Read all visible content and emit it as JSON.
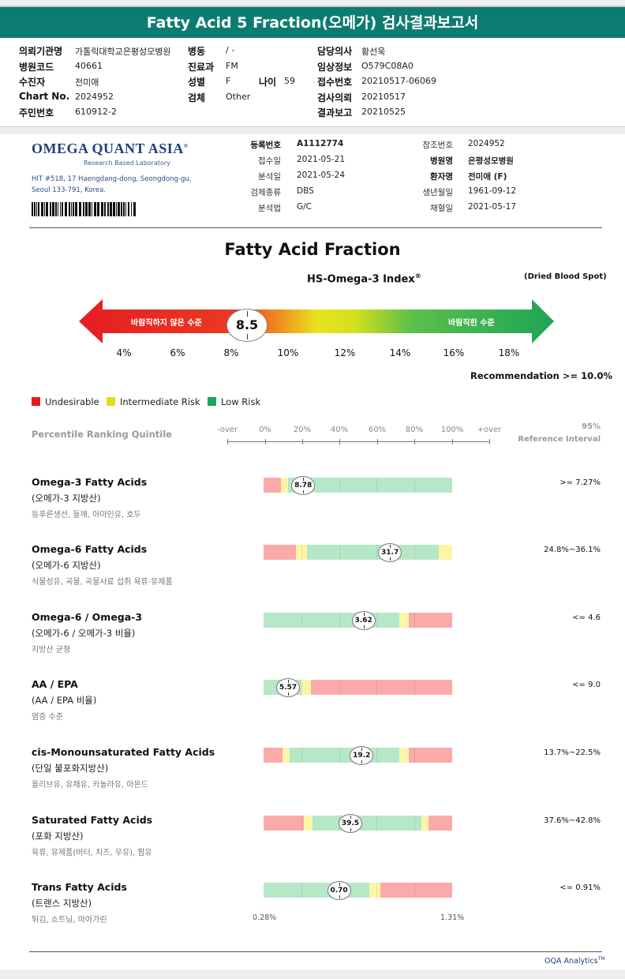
{
  "report": {
    "title": "Fatty Acid 5 Fraction(오메가) 검사결과보고서",
    "fields_left": [
      {
        "label": "의뢰기관명",
        "value": "가톨릭대학교은평성모병원"
      },
      {
        "label": "병원코드",
        "value": "40661"
      },
      {
        "label": "수진자",
        "value": "전미애"
      },
      {
        "label": "Chart No.",
        "value": "2024952"
      },
      {
        "label": "주민번호",
        "value": "610912-2"
      }
    ],
    "fields_mid": [
      {
        "label": "병동",
        "value": "/ -"
      },
      {
        "label": "진료과",
        "value": "FM"
      },
      {
        "label": "성별",
        "value": "F"
      },
      {
        "label": "검체",
        "value": "Other"
      }
    ],
    "age": {
      "label": "나이",
      "value": "59"
    },
    "fields_right": [
      {
        "label": "담당의사",
        "value": "황선욱"
      },
      {
        "label": "임상정보",
        "value": "O579C08A0"
      },
      {
        "label": "접수번호",
        "value": "20210517-06069"
      },
      {
        "label": "검사의뢰",
        "value": "20210517"
      },
      {
        "label": "결과보고",
        "value": "20210525"
      }
    ]
  },
  "lab": {
    "logo": "OMEGA QUANT ASIA",
    "logo_mark": "®",
    "subtitle": "Research Based Laboratory",
    "address_1": "HIT #518, 17 Haengdang-dong, Seongdong-gu,",
    "address_2": "Seoul 133-791, Korea."
  },
  "sample": {
    "col1": [
      {
        "label": "등록번호",
        "value": "A1112774",
        "bold": true
      },
      {
        "label": "접수일",
        "value": "2021-05-21"
      },
      {
        "label": "분석일",
        "value": "2021-05-24"
      },
      {
        "label": "검체종류",
        "value": "DBS"
      },
      {
        "label": "분석법",
        "value": "G/C"
      }
    ],
    "col2": [
      {
        "label": "참조번호",
        "value": "2024952"
      },
      {
        "label": "병원명",
        "value": "은평성모병원",
        "bold": true
      },
      {
        "label": "환자명",
        "value": "전미애 (F)",
        "bold": true
      },
      {
        "label": "생년월일",
        "value": "1961-09-12"
      },
      {
        "label": "채혈일",
        "value": "2021-05-17"
      }
    ]
  },
  "index": {
    "section_title": "Fatty Acid Fraction",
    "title": "HS-Omega-3 Index",
    "title_mark": "®",
    "sample_type": "(Dried Blood Spot)",
    "left_label": "바람직하지 않은 수준",
    "right_label": "바람직한 수준",
    "value": "8.5",
    "ticks": [
      "4%",
      "6%",
      "8%",
      "10%",
      "12%",
      "14%",
      "16%",
      "18%"
    ],
    "recommendation": "Recommendation  >= 10.0%"
  },
  "legend": [
    {
      "label": "Undesirable",
      "color": "#e8191c"
    },
    {
      "label": "Intermediate Risk",
      "color": "#e3dc1a"
    },
    {
      "label": "Low Risk",
      "color": "#19a857"
    }
  ],
  "percentile": {
    "label": "Percentile Ranking Quintile",
    "headers": [
      "-over",
      "0%",
      "20%",
      "40%",
      "60%",
      "80%",
      "100%",
      "+over"
    ],
    "ref_line1": "95%",
    "ref_line2": "Reference Interval"
  },
  "colors": {
    "red": "#fbaaaa",
    "yellow": "#fbf5a8",
    "green": "#b6e7c7"
  },
  "rows": [
    {
      "title": "Omega-3 Fatty Acids",
      "sub": "(오메가-3 지방산)",
      "note": "등푸른생선, 들깨, 아마인유, 호두",
      "ref": ">= 7.27%",
      "value": "8.78",
      "position": 0.21,
      "segments": [
        [
          "red",
          0.09
        ],
        [
          "yellow",
          0.04
        ],
        [
          "green",
          0.87
        ]
      ]
    },
    {
      "title": "Omega-6 Fatty Acids",
      "sub": "(오메가-6 지방산)",
      "note": "식물성유, 곡물, 곡물사료 섭취 육류·유제품",
      "ref": "24.8%~36.1%",
      "value": "31.7",
      "position": 0.67,
      "segments": [
        [
          "red",
          0.17
        ],
        [
          "yellow",
          0.06
        ],
        [
          "green",
          0.7
        ],
        [
          "yellow",
          0.07
        ]
      ]
    },
    {
      "title": "Omega-6 / Omega-3",
      "sub": "(오메가-6 / 오메가-3 비율)",
      "note": "지방산 균형",
      "ref": "<= 4.6",
      "value": "3.62",
      "position": 0.53,
      "segments": [
        [
          "green",
          0.72
        ],
        [
          "yellow",
          0.05
        ],
        [
          "red",
          0.23
        ]
      ]
    },
    {
      "title": "AA / EPA",
      "sub": "(AA / EPA 비율)",
      "note": "염증 수준",
      "ref": "<= 9.0",
      "value": "5.57",
      "position": 0.13,
      "segments": [
        [
          "green",
          0.2
        ],
        [
          "yellow",
          0.05
        ],
        [
          "red",
          0.75
        ]
      ]
    },
    {
      "title": "cis-Monounsaturated Fatty Acids",
      "sub": "(단일 불포화지방산)",
      "note": "올리브유, 유채유, 카놀라유, 아몬드",
      "ref": "13.7%~22.5%",
      "value": "19.2",
      "position": 0.52,
      "segments": [
        [
          "red",
          0.1
        ],
        [
          "yellow",
          0.04
        ],
        [
          "green",
          0.58
        ],
        [
          "yellow",
          0.05
        ],
        [
          "red",
          0.23
        ]
      ]
    },
    {
      "title": "Saturated Fatty Acids",
      "sub": "(포화 지방산)",
      "note": "육류, 유제품(버터, 치즈, 우유), 팜유",
      "ref": "37.6%~42.8%",
      "value": "39.5",
      "position": 0.46,
      "segments": [
        [
          "red",
          0.22
        ],
        [
          "yellow",
          0.05
        ],
        [
          "green",
          0.6
        ],
        [
          "yellow",
          0.04
        ],
        [
          "red",
          0.13
        ]
      ]
    },
    {
      "title": "Trans Fatty Acids",
      "sub": "(트랜스 지방산)",
      "note": "튀김, 쇼트닝, 마아가린",
      "ref": "<= 0.91%",
      "value": "0.70",
      "position": 0.4,
      "segments": [
        [
          "green",
          0.56
        ],
        [
          "yellow",
          0.06
        ],
        [
          "red",
          0.38
        ]
      ],
      "min": "0.28%",
      "max": "1.31%"
    }
  ],
  "footer": {
    "text": "OQA Analytics",
    "mark": "TM"
  }
}
